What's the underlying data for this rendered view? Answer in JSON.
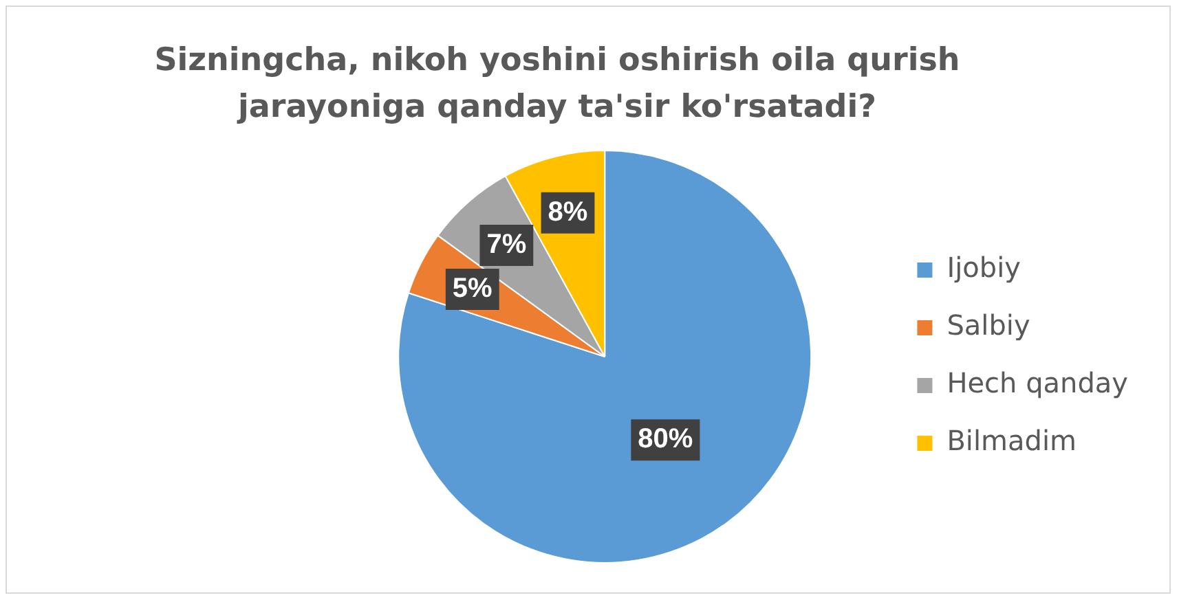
{
  "chart_data": {
    "type": "pie",
    "title": "Sizningcha, nikoh yoshini oshirish oila qurish jarayoniga qanday ta'sir ko'rsatadi?",
    "categories": [
      "Ijobiy",
      "Salbiy",
      "Hech qanday",
      "Bilmadim"
    ],
    "values": [
      80,
      5,
      7,
      8
    ],
    "colors": [
      "#5b9bd5",
      "#ed7d31",
      "#a5a5a5",
      "#ffc000"
    ],
    "value_labels": [
      "80%",
      "5%",
      "7%",
      "8%"
    ],
    "legend": "right"
  }
}
